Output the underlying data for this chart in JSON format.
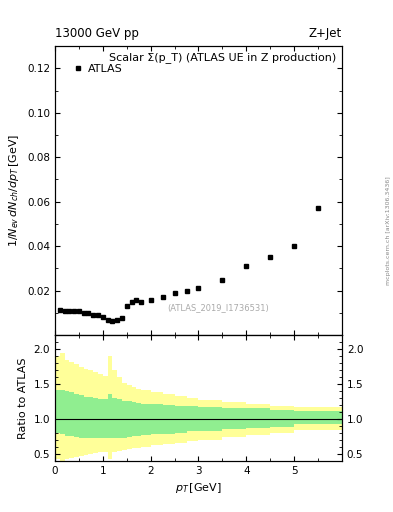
{
  "title_left": "13000 GeV pp",
  "title_right": "Z+Jet",
  "main_title": "Scalar Σ(p_T) (ATLAS UE in Z production)",
  "watermark": "(ATLAS_2019_I1736531)",
  "side_label": "mcplots.cern.ch [arXiv:1306.3436]",
  "ylabel_main": "1/N_{ev} dN_{ch}/dp_T [GeV]",
  "ylabel_ratio": "Ratio to ATLAS",
  "xlabel": "p_T [GeV]",
  "legend_label": "ATLAS",
  "data_x": [
    0.1,
    0.2,
    0.3,
    0.4,
    0.5,
    0.6,
    0.7,
    0.8,
    0.9,
    1.0,
    1.1,
    1.2,
    1.3,
    1.4,
    1.5,
    1.6,
    1.7,
    1.8,
    2.0,
    2.25,
    2.5,
    2.75,
    3.0,
    3.5,
    4.0,
    4.5,
    5.0,
    5.5
  ],
  "data_y": [
    0.0115,
    0.011,
    0.011,
    0.011,
    0.011,
    0.01,
    0.01,
    0.009,
    0.009,
    0.008,
    0.007,
    0.0065,
    0.007,
    0.0075,
    0.013,
    0.015,
    0.016,
    0.015,
    0.016,
    0.017,
    0.019,
    0.02,
    0.021,
    0.025,
    0.031,
    0.035,
    0.04,
    0.057
  ],
  "xlim": [
    0,
    6
  ],
  "ylim_main": [
    0,
    0.13
  ],
  "ylim_ratio": [
    0.4,
    2.2
  ],
  "yticks_main": [
    0.02,
    0.04,
    0.06,
    0.08,
    0.1,
    0.12
  ],
  "yticks_ratio": [
    0.5,
    1.0,
    1.5,
    2.0
  ],
  "xticks": [
    0,
    1,
    2,
    3,
    4,
    5
  ],
  "ratio_bin_edges": [
    0.0,
    0.1,
    0.2,
    0.3,
    0.4,
    0.5,
    0.6,
    0.7,
    0.8,
    0.9,
    1.0,
    1.1,
    1.2,
    1.3,
    1.4,
    1.5,
    1.6,
    1.7,
    1.8,
    2.0,
    2.25,
    2.5,
    2.75,
    3.0,
    3.5,
    4.0,
    4.5,
    5.0,
    6.0
  ],
  "green_upper": [
    1.42,
    1.42,
    1.4,
    1.38,
    1.36,
    1.34,
    1.32,
    1.31,
    1.3,
    1.29,
    1.28,
    1.35,
    1.3,
    1.28,
    1.26,
    1.25,
    1.24,
    1.23,
    1.22,
    1.21,
    1.2,
    1.19,
    1.18,
    1.17,
    1.16,
    1.15,
    1.13,
    1.12
  ],
  "green_lower": [
    0.8,
    0.78,
    0.76,
    0.75,
    0.74,
    0.73,
    0.73,
    0.73,
    0.73,
    0.73,
    0.73,
    0.72,
    0.72,
    0.72,
    0.73,
    0.74,
    0.75,
    0.76,
    0.77,
    0.78,
    0.79,
    0.8,
    0.82,
    0.83,
    0.85,
    0.87,
    0.89,
    0.92
  ],
  "yellow_upper": [
    1.9,
    1.95,
    1.85,
    1.82,
    1.78,
    1.75,
    1.72,
    1.7,
    1.67,
    1.65,
    1.62,
    1.9,
    1.7,
    1.6,
    1.52,
    1.48,
    1.45,
    1.43,
    1.41,
    1.39,
    1.36,
    1.33,
    1.3,
    1.27,
    1.24,
    1.22,
    1.19,
    1.17
  ],
  "yellow_lower": [
    0.42,
    0.4,
    0.42,
    0.44,
    0.46,
    0.47,
    0.48,
    0.5,
    0.51,
    0.52,
    0.53,
    0.42,
    0.52,
    0.54,
    0.55,
    0.57,
    0.58,
    0.59,
    0.6,
    0.62,
    0.64,
    0.66,
    0.68,
    0.7,
    0.74,
    0.77,
    0.8,
    0.84
  ],
  "green_color": "#90EE90",
  "yellow_color": "#FFFF99",
  "marker_color": "black",
  "marker": "s",
  "marker_size": 3.5,
  "bg_color": "white",
  "axis_label_fontsize": 8,
  "tick_fontsize": 7.5,
  "title_fontsize": 8.5,
  "inner_title_fontsize": 8
}
